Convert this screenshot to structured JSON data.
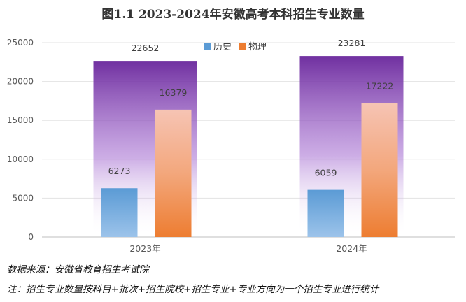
{
  "chart_data": {
    "type": "bar",
    "title": "图1.1 2023-2024年安徽高考本科招生专业数量",
    "categories": [
      "2023年",
      "2024年"
    ],
    "totals": [
      22652,
      23281
    ],
    "series": [
      {
        "name": "历史",
        "values": [
          6273,
          6059
        ],
        "color": "#5b9bd5"
      },
      {
        "name": "物理",
        "values": [
          16379,
          17222
        ],
        "color": "#ed7d31"
      }
    ],
    "total_bar_color": "#7030a0",
    "ylim": [
      0,
      25000
    ],
    "yticks": [
      "0",
      "5000",
      "10000",
      "15000",
      "20000",
      "25000"
    ],
    "legend_position": "top-center",
    "grid": true
  },
  "notes": {
    "source": "数据来源：安徽省教育招生考试院",
    "footnote": "注：招生专业数量按科目+批次+招生院校+招生专业+专业方向为一个招生专业进行统计"
  }
}
